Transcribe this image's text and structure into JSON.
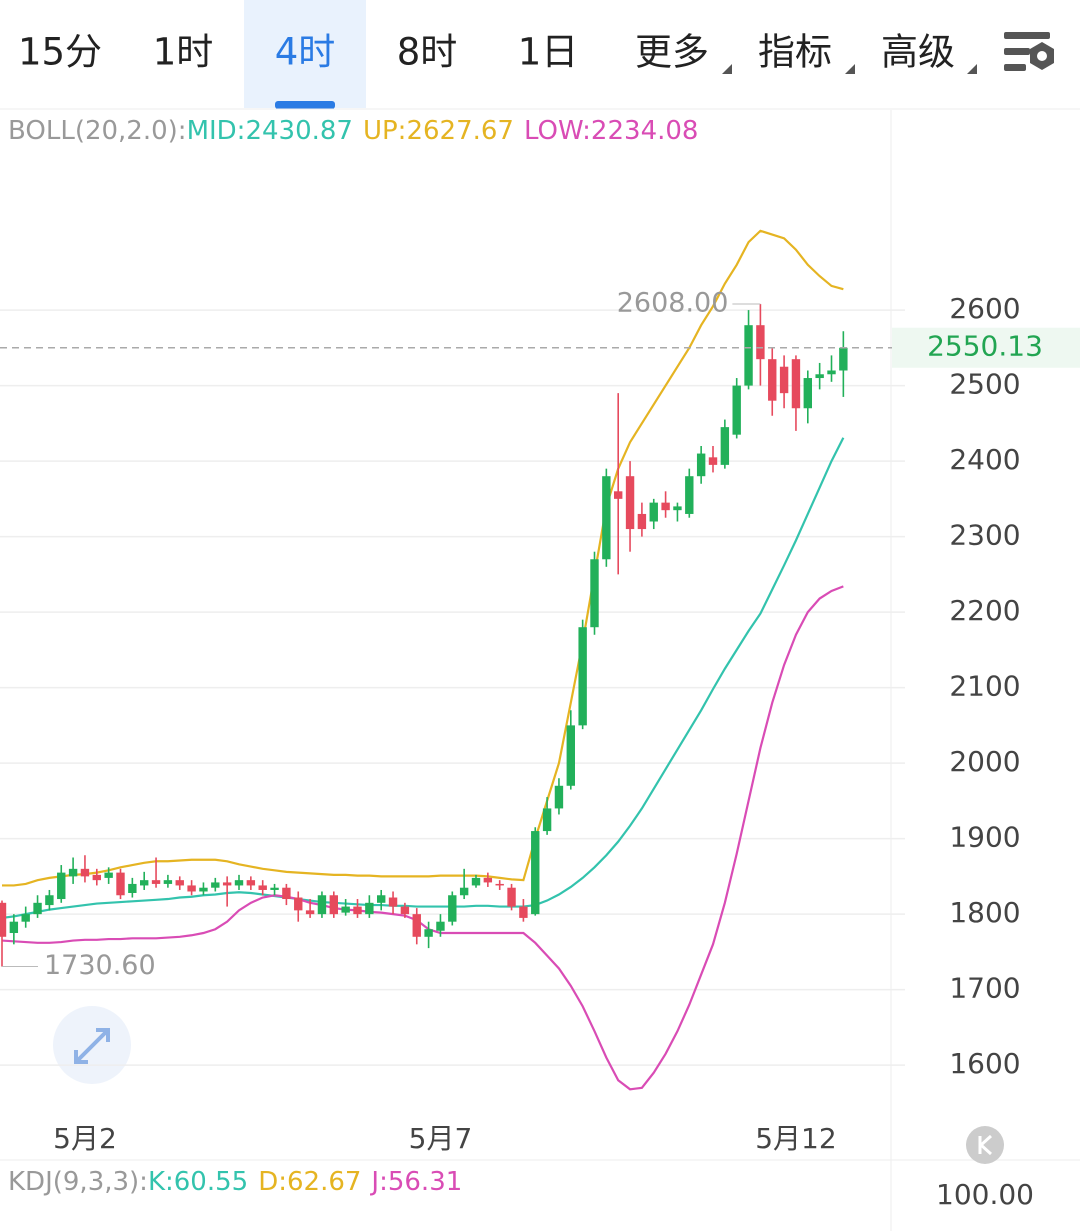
{
  "tabs": [
    "15分",
    "1时",
    "4时",
    "8时",
    "1日",
    "更多",
    "指标",
    "高级"
  ],
  "chart_data": {
    "type": "candlestick",
    "indicator_label": "BOLL(20,2.0):",
    "categories": [
      null,
      null,
      null,
      null,
      null,
      null,
      null,
      "5月2",
      null,
      null,
      null,
      null,
      null,
      null,
      null,
      null,
      null,
      null,
      null,
      null,
      null,
      null,
      null,
      null,
      null,
      null,
      null,
      null,
      null,
      null,
      null,
      null,
      null,
      null,
      null,
      null,
      null,
      "5月7",
      null,
      null,
      null,
      null,
      null,
      null,
      null,
      null,
      null,
      null,
      null,
      null,
      null,
      null,
      null,
      null,
      null,
      null,
      null,
      null,
      null,
      null,
      null,
      null,
      null,
      null,
      null,
      null,
      null,
      "5月12",
      null,
      null,
      null,
      null
    ],
    "open": [
      1815,
      1775,
      1790,
      1800,
      1812,
      1820,
      1850,
      1860,
      1852,
      1848,
      1855,
      1828,
      1838,
      1845,
      1840,
      1845,
      1838,
      1830,
      1835,
      1842,
      1838,
      1845,
      1838,
      1832,
      1835,
      1822,
      1805,
      1800,
      1825,
      1802,
      1810,
      1800,
      1815,
      1822,
      1810,
      1800,
      1770,
      1778,
      1790,
      1825,
      1838,
      1848,
      1840,
      1835,
      1810,
      1800,
      1910,
      1940,
      1970,
      2050,
      2180,
      2270,
      2360,
      2380,
      2330,
      2320,
      2345,
      2335,
      2330,
      2380,
      2405,
      2395,
      2435,
      2500,
      2580,
      2535,
      2525,
      2535,
      2470,
      2510,
      2515,
      2520
    ],
    "high": [
      1818,
      1800,
      1810,
      1825,
      1832,
      1865,
      1875,
      1878,
      1860,
      1862,
      1860,
      1848,
      1856,
      1875,
      1852,
      1850,
      1845,
      1842,
      1848,
      1850,
      1852,
      1850,
      1845,
      1840,
      1840,
      1830,
      1820,
      1830,
      1830,
      1820,
      1820,
      1825,
      1832,
      1830,
      1815,
      1808,
      1790,
      1800,
      1830,
      1860,
      1852,
      1855,
      1845,
      1840,
      1820,
      1915,
      1955,
      1980,
      2070,
      2190,
      2280,
      2390,
      2490,
      2400,
      2345,
      2350,
      2360,
      2345,
      2390,
      2420,
      2420,
      2455,
      2510,
      2600,
      2608,
      2550,
      2540,
      2540,
      2520,
      2530,
      2540,
      2572
    ],
    "low": [
      1730.6,
      1760,
      1782,
      1795,
      1805,
      1815,
      1840,
      1842,
      1838,
      1840,
      1820,
      1822,
      1832,
      1835,
      1835,
      1832,
      1825,
      1825,
      1830,
      1810,
      1832,
      1832,
      1825,
      1825,
      1812,
      1790,
      1795,
      1795,
      1795,
      1798,
      1795,
      1795,
      1805,
      1800,
      1795,
      1760,
      1755,
      1770,
      1785,
      1820,
      1835,
      1836,
      1832,
      1805,
      1790,
      1798,
      1905,
      1932,
      1965,
      2045,
      2170,
      2260,
      2250,
      2280,
      2300,
      2310,
      2325,
      2320,
      2325,
      2370,
      2385,
      2390,
      2430,
      2495,
      2500,
      2460,
      2470,
      2440,
      2450,
      2495,
      2505,
      2485
    ],
    "close": [
      1770,
      1790,
      1800,
      1815,
      1825,
      1855,
      1860,
      1850,
      1845,
      1855,
      1825,
      1840,
      1845,
      1840,
      1845,
      1838,
      1830,
      1835,
      1842,
      1838,
      1845,
      1838,
      1832,
      1835,
      1820,
      1805,
      1800,
      1825,
      1800,
      1810,
      1800,
      1815,
      1825,
      1810,
      1800,
      1770,
      1780,
      1790,
      1825,
      1835,
      1848,
      1842,
      1838,
      1810,
      1795,
      1910,
      1940,
      1970,
      2050,
      2180,
      2270,
      2380,
      2350,
      2310,
      2310,
      2345,
      2335,
      2340,
      2380,
      2410,
      2395,
      2445,
      2500,
      2580,
      2535,
      2480,
      2490,
      2470,
      2510,
      2515,
      2520,
      2550.13
    ],
    "up_color": "#22b05a",
    "down_color": "#e64a5d",
    "series": [
      {
        "name": "MID:2430.87",
        "color": "#33c3ad",
        "values": [
          1795,
          1797,
          1800,
          1803,
          1806,
          1808,
          1810,
          1812,
          1814,
          1815,
          1816,
          1817,
          1818,
          1819,
          1820,
          1822,
          1823,
          1825,
          1826,
          1828,
          1829,
          1828,
          1826,
          1824,
          1822,
          1820,
          1818,
          1816,
          1815,
          1814,
          1813,
          1812,
          1812,
          1811,
          1811,
          1810,
          1810,
          1810,
          1810,
          1810,
          1811,
          1811,
          1810,
          1810,
          1810,
          1812,
          1818,
          1826,
          1836,
          1848,
          1862,
          1878,
          1896,
          1917,
          1940,
          1966,
          1992,
          2018,
          2044,
          2070,
          2098,
          2125,
          2150,
          2175,
          2198,
          2230,
          2262,
          2295,
          2330,
          2365,
          2400,
          2430.87
        ]
      },
      {
        "name": "UP:2627.67",
        "color": "#e5b422",
        "values": [
          1838,
          1838,
          1840,
          1845,
          1848,
          1850,
          1852,
          1853,
          1855,
          1858,
          1862,
          1865,
          1868,
          1870,
          1870,
          1871,
          1872,
          1872,
          1872,
          1870,
          1866,
          1863,
          1860,
          1858,
          1856,
          1855,
          1854,
          1853,
          1852,
          1852,
          1851,
          1851,
          1850,
          1850,
          1850,
          1850,
          1850,
          1851,
          1851,
          1851,
          1851,
          1850,
          1848,
          1846,
          1845,
          1900,
          1950,
          2000,
          2080,
          2160,
          2250,
          2340,
          2390,
          2425,
          2450,
          2475,
          2500,
          2525,
          2550,
          2580,
          2605,
          2635,
          2660,
          2690,
          2705,
          2700,
          2695,
          2680,
          2660,
          2645,
          2632,
          2627.67
        ]
      },
      {
        "name": "LOW:2234.08",
        "color": "#d94cb5",
        "values": [
          1765,
          1764,
          1763,
          1762,
          1762,
          1763,
          1765,
          1766,
          1766,
          1767,
          1767,
          1768,
          1768,
          1768,
          1769,
          1770,
          1772,
          1775,
          1780,
          1790,
          1805,
          1815,
          1822,
          1825,
          1823,
          1820,
          1815,
          1812,
          1808,
          1806,
          1805,
          1803,
          1802,
          1800,
          1798,
          1792,
          1780,
          1775,
          1775,
          1775,
          1775,
          1775,
          1775,
          1775,
          1775,
          1762,
          1745,
          1728,
          1705,
          1678,
          1645,
          1610,
          1580,
          1568,
          1570,
          1590,
          1615,
          1645,
          1680,
          1720,
          1760,
          1815,
          1880,
          1950,
          2020,
          2080,
          2130,
          2170,
          2200,
          2218,
          2228,
          2234.08
        ]
      }
    ],
    "ylim": [
      1530,
      2865
    ],
    "yticks": [
      1600,
      1700,
      1800,
      1900,
      2000,
      2100,
      2200,
      2300,
      2400,
      2500,
      2600
    ],
    "grid": true,
    "high_label": {
      "value": 2608,
      "label": "2608.00"
    },
    "low_label": {
      "value": 1730.6,
      "label": "1730.60"
    },
    "last_price": {
      "value": 2550.13,
      "label": "2550.13"
    },
    "kdj": {
      "indicator_label": "KDJ(9,3,3):",
      "names": [
        "K:60.55",
        "D:62.67",
        "J:56.31"
      ],
      "yticks": [
        {
          "value": 100,
          "label": "100.00"
        }
      ]
    }
  }
}
